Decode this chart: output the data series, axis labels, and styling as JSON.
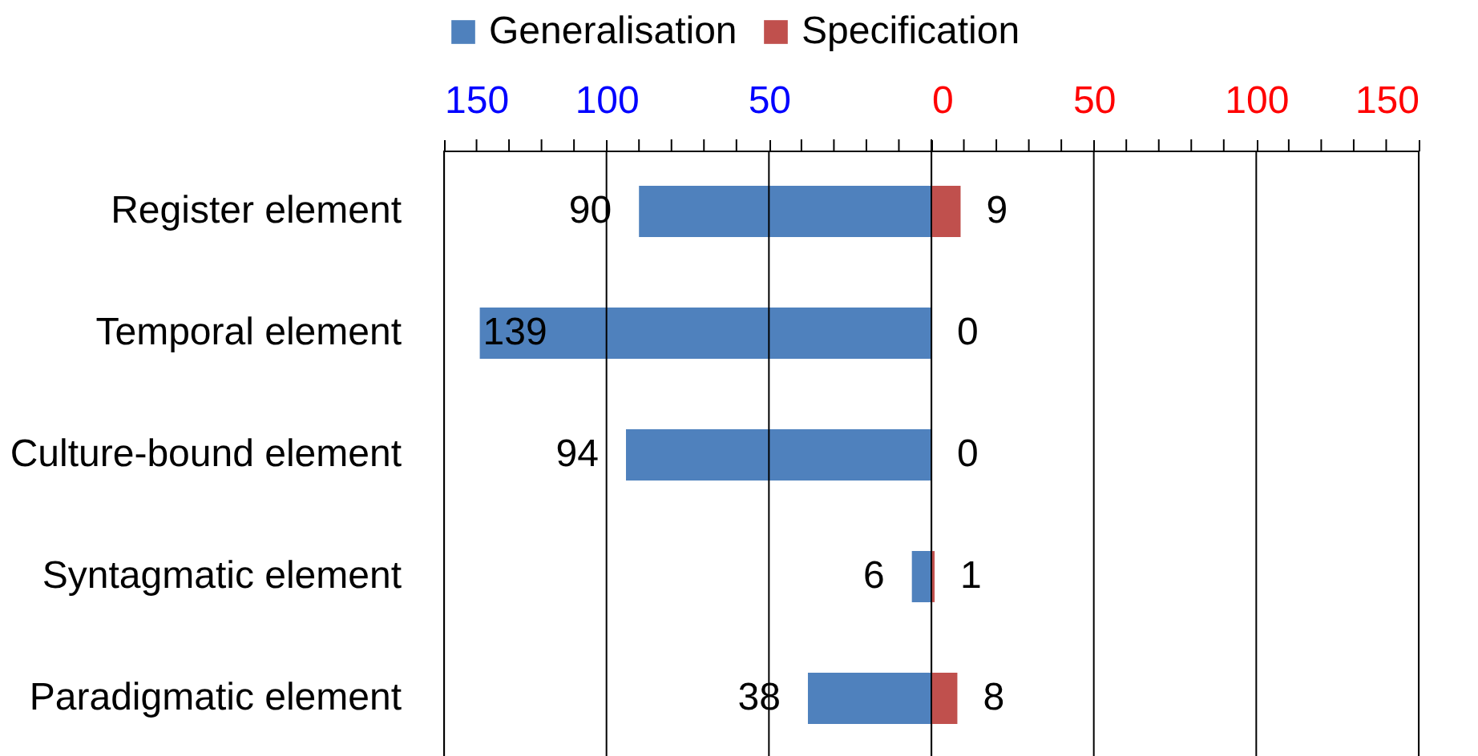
{
  "chart_data": [
    {
      "type": "bar",
      "orientation": "horizontal",
      "categories": [
        "Register element",
        "Temporal element",
        "Culture-bound element",
        "Syntagmatic element",
        "Paradigmatic element"
      ],
      "series": [
        {
          "name": "Generalisation",
          "color": "#4f81bd",
          "values": [
            90,
            139,
            94,
            6,
            38
          ]
        }
      ],
      "data_labels": true,
      "xlim": [
        150,
        0
      ],
      "xticks": [
        150,
        {
          "value": 140,
          "label": null
        },
        {
          "value": 130,
          "label": null
        },
        {
          "value": 120,
          "label": null
        },
        {
          "value": 110,
          "label": null
        },
        100,
        {
          "value": 90,
          "label": null
        },
        {
          "value": 80,
          "label": null
        },
        {
          "value": 70,
          "label": null
        },
        {
          "value": 60,
          "label": null
        },
        50,
        {
          "value": 40,
          "label": null
        },
        {
          "value": 30,
          "label": null
        },
        {
          "value": 20,
          "label": null
        },
        {
          "value": 10,
          "label": null
        },
        {
          "value": 0,
          "label": null
        }
      ],
      "grid": "x",
      "legend": "top"
    },
    {
      "type": "bar",
      "orientation": "horizontal",
      "categories": [
        null,
        null,
        null,
        null,
        null
      ],
      "series": [
        {
          "name": "Specification",
          "color": "#c0504d",
          "values": [
            9,
            0,
            0,
            1,
            8
          ]
        }
      ],
      "data_labels": true,
      "xlim": [
        0,
        150
      ],
      "xticks": [
        0,
        {
          "value": 10,
          "label": null
        },
        {
          "value": 20,
          "label": null
        },
        {
          "value": 30,
          "label": null
        },
        {
          "value": 40,
          "label": null
        },
        50,
        {
          "value": 60,
          "label": null
        },
        {
          "value": 70,
          "label": null
        },
        {
          "value": 80,
          "label": null
        },
        {
          "value": 90,
          "label": null
        },
        100,
        {
          "value": 110,
          "label": null
        },
        {
          "value": 120,
          "label": null
        },
        {
          "value": 130,
          "label": null
        },
        {
          "value": 140,
          "label": null
        },
        150
      ],
      "grid": "x",
      "tick_labels": "x"
    }
  ]
}
